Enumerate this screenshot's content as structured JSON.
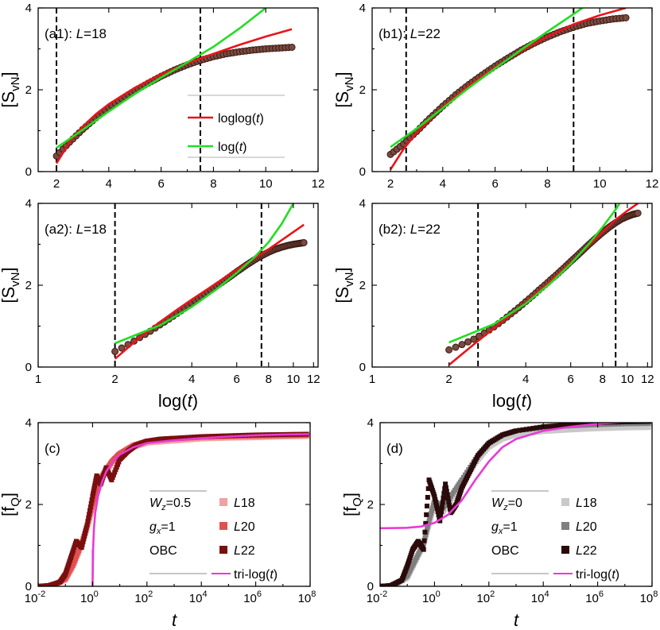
{
  "colors": {
    "red": "#e8141a",
    "green": "#22dd22",
    "magenta": "#e83ad6",
    "data_dark": "#3a1a12",
    "data_marker_fill": "#7a4a40",
    "l18_red": "#f2a0a0",
    "l20_red": "#e05050",
    "l22_red": "#7a0f0f",
    "l18_gray": "#c9c9c9",
    "l20_gray": "#7f7f7f",
    "l22_gray": "#2a0a0a"
  },
  "chart_data": [
    {
      "id": "a1",
      "type": "line",
      "panel_label": "(a1): ",
      "panel_L": "L",
      "panel_value": "=18",
      "xscale": "linear",
      "xlim": [
        1.3,
        12
      ],
      "ylim": [
        0,
        4
      ],
      "xticks": [
        2,
        4,
        6,
        8,
        10,
        12
      ],
      "xtick_labels": [
        "2",
        "4",
        "6",
        "8",
        "10",
        "12"
      ],
      "yticks": [
        0,
        2,
        4
      ],
      "ytick_labels": [
        "0",
        "2",
        "4"
      ],
      "ylabel": "[S",
      "ylabel_sub": "vN",
      "ylabel_close": "]",
      "vlines": [
        2.0,
        7.5
      ],
      "data": {
        "x": [
          2.0,
          2.5,
          3.0,
          3.5,
          4.0,
          4.5,
          5.0,
          5.5,
          6.0,
          6.5,
          7.0,
          7.5,
          8.0,
          8.5,
          9.0,
          9.5,
          10.0,
          10.5,
          11.0
        ],
        "y": [
          0.38,
          0.72,
          1.03,
          1.31,
          1.56,
          1.78,
          1.98,
          2.16,
          2.33,
          2.48,
          2.61,
          2.72,
          2.81,
          2.88,
          2.93,
          2.97,
          3.0,
          3.02,
          3.04
        ]
      },
      "fits": [
        {
          "name": "loglog(t)",
          "color_key": "red",
          "x": [
            2.0,
            2.5,
            3.0,
            3.5,
            4.0,
            5.0,
            6.0,
            7.0,
            8.0,
            9.0,
            10.0,
            11.0
          ],
          "y": [
            0.2,
            0.72,
            1.1,
            1.4,
            1.65,
            2.05,
            2.38,
            2.65,
            2.88,
            3.1,
            3.3,
            3.48
          ]
        },
        {
          "name": "log(t)",
          "color_key": "green",
          "x": [
            2.0,
            3.0,
            4.0,
            5.0,
            6.0,
            7.0,
            8.0,
            9.0,
            10.0
          ],
          "y": [
            0.58,
            1.02,
            1.47,
            1.9,
            2.3,
            2.67,
            3.05,
            3.5,
            4.0
          ]
        }
      ],
      "legend": {
        "items": [
          {
            "text": "loglog(",
            "italic": "t",
            "close": ")",
            "color_key": "red"
          },
          {
            "text": "log(",
            "italic": "t",
            "close": ")",
            "color_key": "green"
          }
        ]
      }
    },
    {
      "id": "b1",
      "type": "line",
      "panel_label": "(b1): ",
      "panel_L": "L",
      "panel_value": "=22",
      "xscale": "linear",
      "xlim": [
        1.3,
        12
      ],
      "ylim": [
        0,
        4
      ],
      "xticks": [
        2,
        4,
        6,
        8,
        10,
        12
      ],
      "xtick_labels": [
        "2",
        "4",
        "6",
        "8",
        "10",
        "12"
      ],
      "yticks": [
        0,
        2,
        4
      ],
      "ytick_labels": [
        "0",
        "2",
        "4"
      ],
      "ylabel": "[S",
      "ylabel_sub": "vN",
      "ylabel_close": "]",
      "vlines": [
        2.6,
        9.0
      ],
      "data": {
        "x": [
          2.0,
          2.5,
          3.0,
          3.5,
          4.0,
          4.5,
          5.0,
          5.5,
          6.0,
          6.5,
          7.0,
          7.5,
          8.0,
          8.5,
          9.0,
          9.5,
          10.0,
          10.5,
          11.0
        ],
        "y": [
          0.42,
          0.68,
          0.98,
          1.3,
          1.6,
          1.88,
          2.13,
          2.36,
          2.58,
          2.78,
          2.97,
          3.14,
          3.29,
          3.42,
          3.53,
          3.62,
          3.68,
          3.73,
          3.76
        ]
      },
      "fits": [
        {
          "name": "loglog(t)",
          "color_key": "red",
          "x": [
            2.0,
            2.5,
            3.0,
            4.0,
            5.0,
            6.0,
            7.0,
            8.0,
            9.0,
            10.0,
            11.0
          ],
          "y": [
            0.05,
            0.55,
            0.95,
            1.58,
            2.1,
            2.55,
            2.95,
            3.3,
            3.6,
            3.82,
            4.0
          ]
        },
        {
          "name": "log(t)",
          "color_key": "green",
          "x": [
            2.0,
            3.0,
            4.0,
            5.0,
            6.0,
            7.0,
            8.0,
            9.0,
            10.0
          ],
          "y": [
            0.6,
            1.05,
            1.55,
            2.05,
            2.52,
            2.98,
            3.42,
            3.85,
            4.3
          ]
        }
      ]
    },
    {
      "id": "a2",
      "type": "line",
      "panel_label": "(a2): ",
      "panel_L": "L",
      "panel_value": "=18",
      "xscale": "log",
      "xlim": [
        1,
        12.5
      ],
      "ylim": [
        0,
        4
      ],
      "xticks": [
        1,
        2,
        4,
        6,
        8,
        10,
        12
      ],
      "xtick_labels": [
        "1",
        "2",
        "4",
        "6",
        "8",
        "10",
        "12"
      ],
      "yticks": [
        0,
        2,
        4
      ],
      "ytick_labels": [
        "0",
        "2",
        "4"
      ],
      "ylabel": "[S",
      "ylabel_sub": "vN",
      "ylabel_close": "]",
      "xlabel": "log(",
      "xlabel_italic": "t",
      "xlabel_close": ")",
      "vlines": [
        2.0,
        7.5
      ],
      "data": {
        "x": [
          2.0,
          2.5,
          3.0,
          3.5,
          4.0,
          4.5,
          5.0,
          5.5,
          6.0,
          6.5,
          7.0,
          7.5,
          8.0,
          8.5,
          9.0,
          9.5,
          10.0,
          10.5,
          11.0
        ],
        "y": [
          0.38,
          0.72,
          1.03,
          1.31,
          1.56,
          1.78,
          1.98,
          2.16,
          2.33,
          2.48,
          2.61,
          2.72,
          2.81,
          2.88,
          2.93,
          2.97,
          3.0,
          3.02,
          3.04
        ]
      },
      "fits": [
        {
          "name": "loglog(t)",
          "color_key": "red",
          "x": [
            2.0,
            2.5,
            3.0,
            3.5,
            4.0,
            5.0,
            6.0,
            7.0,
            8.0,
            9.0,
            10.0,
            11.0
          ],
          "y": [
            0.2,
            0.72,
            1.1,
            1.4,
            1.65,
            2.05,
            2.38,
            2.65,
            2.88,
            3.1,
            3.3,
            3.48
          ]
        },
        {
          "name": "log(t)",
          "color_key": "green",
          "x": [
            2.0,
            3.0,
            4.0,
            5.0,
            6.0,
            7.0,
            8.0,
            9.0,
            10.0
          ],
          "y": [
            0.58,
            1.02,
            1.47,
            1.9,
            2.3,
            2.67,
            3.05,
            3.5,
            4.0
          ]
        }
      ]
    },
    {
      "id": "b2",
      "type": "line",
      "panel_label": "(b2): ",
      "panel_L": "L",
      "panel_value": "=22",
      "xscale": "log",
      "xlim": [
        1,
        12.5
      ],
      "ylim": [
        0,
        4
      ],
      "xticks": [
        1,
        2,
        4,
        6,
        8,
        10,
        12
      ],
      "xtick_labels": [
        "1",
        "2",
        "4",
        "6",
        "8",
        "10",
        "12"
      ],
      "yticks": [
        0,
        2,
        4
      ],
      "ytick_labels": [
        "0",
        "2",
        "4"
      ],
      "ylabel": "[S",
      "ylabel_sub": "vN",
      "ylabel_close": "]",
      "xlabel": "log(",
      "xlabel_italic": "t",
      "xlabel_close": ")",
      "vlines": [
        2.6,
        9.0
      ],
      "data": {
        "x": [
          2.0,
          2.5,
          3.0,
          3.5,
          4.0,
          4.5,
          5.0,
          5.5,
          6.0,
          6.5,
          7.0,
          7.5,
          8.0,
          8.5,
          9.0,
          9.5,
          10.0,
          10.5,
          11.0
        ],
        "y": [
          0.42,
          0.68,
          0.98,
          1.3,
          1.6,
          1.88,
          2.13,
          2.36,
          2.58,
          2.78,
          2.97,
          3.14,
          3.29,
          3.42,
          3.53,
          3.62,
          3.68,
          3.73,
          3.76
        ]
      },
      "fits": [
        {
          "name": "loglog(t)",
          "color_key": "red",
          "x": [
            2.0,
            2.5,
            3.0,
            4.0,
            5.0,
            6.0,
            7.0,
            8.0,
            9.0,
            10.0,
            11.0
          ],
          "y": [
            0.05,
            0.55,
            0.95,
            1.58,
            2.1,
            2.55,
            2.95,
            3.3,
            3.6,
            3.82,
            4.0
          ]
        },
        {
          "name": "log(t)",
          "color_key": "green",
          "x": [
            2.0,
            3.0,
            4.0,
            5.0,
            6.0,
            7.0,
            8.0,
            9.0,
            10.0
          ],
          "y": [
            0.6,
            1.05,
            1.55,
            2.05,
            2.52,
            2.98,
            3.42,
            3.85,
            4.3
          ]
        }
      ]
    },
    {
      "id": "c",
      "type": "scatter",
      "panel_label": "(c)",
      "xscale": "log10",
      "xlim": [
        -2,
        8
      ],
      "ylim": [
        0,
        4
      ],
      "xticks": [
        -2,
        0,
        2,
        4,
        6,
        8
      ],
      "xtick_labels": [
        "10",
        "10",
        "10",
        "10",
        "10",
        "10"
      ],
      "xtick_exps": [
        "-2",
        "0",
        "2",
        "4",
        "6",
        "8"
      ],
      "yticks": [
        0,
        2,
        4
      ],
      "ytick_labels": [
        "0",
        "2",
        "4"
      ],
      "ylabel": "[f",
      "ylabel_sub": "Q",
      "ylabel_close": "]",
      "xlabel": "t",
      "params": [
        "W",
        "z",
        "=0.5",
        "g",
        "x",
        "=1",
        "OBC"
      ],
      "series": [
        {
          "name": "L",
          "name_suffix": "18",
          "color_key": "l18_red",
          "log_t": [
            -2.0,
            -1.5,
            -1.0,
            -0.7,
            -0.4,
            -0.2,
            0.0,
            0.2,
            0.4,
            0.7,
            1.0,
            1.5,
            2.0,
            3.0,
            4.0,
            5.0,
            6.0,
            7.0,
            8.0
          ],
          "y": [
            0.0,
            0.02,
            0.15,
            0.5,
            1.0,
            1.4,
            1.9,
            2.4,
            2.7,
            3.0,
            3.2,
            3.4,
            3.5,
            3.55,
            3.6,
            3.62,
            3.63,
            3.65,
            3.66
          ]
        },
        {
          "name": "L",
          "name_suffix": "20",
          "color_key": "l20_red",
          "log_t": [
            -2.0,
            -1.5,
            -1.0,
            -0.7,
            -0.4,
            -0.2,
            0.0,
            0.2,
            0.4,
            0.7,
            1.0,
            1.5,
            2.0,
            3.0,
            4.0,
            5.0,
            6.0,
            7.0,
            8.0
          ],
          "y": [
            0.0,
            0.02,
            0.18,
            0.55,
            1.05,
            1.5,
            2.0,
            2.5,
            2.75,
            3.05,
            3.25,
            3.45,
            3.55,
            3.6,
            3.64,
            3.66,
            3.67,
            3.68,
            3.69
          ]
        },
        {
          "name": "L",
          "name_suffix": "22",
          "color_key": "l22_red",
          "log_t": [
            -2.0,
            -1.6,
            -1.2,
            -1.0,
            -0.8,
            -0.6,
            -0.4,
            -0.2,
            0.0,
            0.15,
            0.3,
            0.5,
            0.7,
            1.0,
            1.3,
            1.6,
            2.0,
            2.5,
            3.0,
            4.0,
            5.0,
            6.0,
            7.0,
            8.0
          ],
          "y": [
            0.0,
            0.02,
            0.1,
            0.3,
            0.7,
            1.1,
            0.95,
            1.5,
            2.2,
            2.7,
            2.5,
            2.9,
            2.6,
            3.1,
            3.3,
            3.45,
            3.55,
            3.6,
            3.62,
            3.66,
            3.68,
            3.7,
            3.71,
            3.72
          ]
        }
      ],
      "fit": {
        "name": "tri-log(",
        "italic": "t",
        "close": ")",
        "color_key": "magenta",
        "log_t": [
          0.0,
          0.02,
          0.05,
          0.1,
          0.2,
          0.35,
          0.5,
          0.75,
          1.0,
          1.5,
          2.0,
          3.0,
          4.0,
          5.0,
          6.0,
          7.0,
          8.0
        ],
        "y": [
          0.0,
          0.9,
          1.4,
          1.8,
          2.2,
          2.55,
          2.8,
          3.05,
          3.22,
          3.4,
          3.5,
          3.57,
          3.62,
          3.66,
          3.69,
          3.71,
          3.72
        ]
      }
    },
    {
      "id": "d",
      "type": "scatter",
      "panel_label": "(d)",
      "xscale": "log10",
      "xlim": [
        -2,
        8
      ],
      "ylim": [
        0,
        4
      ],
      "xticks": [
        -2,
        0,
        2,
        4,
        6,
        8
      ],
      "xtick_labels": [
        "10",
        "10",
        "10",
        "10",
        "10",
        "10"
      ],
      "xtick_exps": [
        "-2",
        "0",
        "2",
        "4",
        "6",
        "8"
      ],
      "yticks": [
        0,
        2,
        4
      ],
      "ytick_labels": [
        "0",
        "2",
        "4"
      ],
      "ylabel": "[f",
      "ylabel_sub": "Q",
      "ylabel_close": "]",
      "xlabel": "t",
      "params": [
        "W",
        "z",
        "=0",
        "g",
        "x",
        "=1",
        "OBC"
      ],
      "series": [
        {
          "name": "L",
          "name_suffix": "18",
          "color_key": "l18_gray",
          "log_t": [
            -2.0,
            -1.5,
            -1.0,
            -0.7,
            -0.4,
            -0.2,
            0.0,
            0.3,
            0.6,
            1.0,
            1.5,
            2.0,
            2.5,
            3.0,
            4.0,
            5.0,
            6.0,
            7.0,
            8.0
          ],
          "y": [
            0.0,
            0.02,
            0.2,
            0.6,
            1.0,
            1.5,
            2.0,
            1.8,
            2.1,
            2.5,
            3.0,
            3.4,
            3.6,
            3.7,
            3.78,
            3.82,
            3.85,
            3.87,
            3.88
          ]
        },
        {
          "name": "L",
          "name_suffix": "20",
          "color_key": "l20_gray",
          "log_t": [
            -2.0,
            -1.5,
            -1.0,
            -0.7,
            -0.4,
            -0.2,
            0.0,
            0.3,
            0.6,
            1.0,
            1.5,
            2.0,
            2.5,
            3.0,
            4.0,
            5.0,
            6.0,
            7.0,
            8.0
          ],
          "y": [
            0.0,
            0.02,
            0.25,
            0.65,
            1.05,
            1.6,
            2.1,
            1.9,
            2.2,
            2.6,
            3.1,
            3.5,
            3.7,
            3.8,
            3.88,
            3.92,
            3.95,
            3.97,
            3.98
          ]
        },
        {
          "name": "L",
          "name_suffix": "22",
          "color_key": "l22_gray",
          "log_t": [
            -2.0,
            -1.6,
            -1.2,
            -1.0,
            -0.8,
            -0.6,
            -0.4,
            -0.2,
            0.0,
            0.2,
            0.4,
            0.6,
            0.8,
            1.0,
            1.3,
            1.6,
            2.0,
            2.5,
            3.0,
            4.0,
            5.0,
            6.0,
            7.0,
            8.0
          ],
          "y": [
            0.0,
            0.02,
            0.15,
            0.5,
            0.9,
            1.1,
            0.9,
            2.6,
            2.2,
            1.6,
            2.5,
            1.8,
            2.0,
            2.4,
            2.8,
            3.2,
            3.5,
            3.7,
            3.8,
            3.9,
            3.95,
            4.0,
            4.02,
            4.03
          ]
        }
      ],
      "fit": {
        "name": "tri-log(",
        "italic": "t",
        "close": ")",
        "color_key": "magenta",
        "log_t": [
          -2.0,
          -1.0,
          -0.5,
          0.0,
          0.5,
          1.0,
          1.5,
          2.0,
          2.5,
          3.0,
          4.0,
          5.0,
          6.0,
          7.0,
          8.0
        ],
        "y": [
          1.42,
          1.43,
          1.46,
          1.55,
          1.75,
          2.1,
          2.6,
          3.05,
          3.4,
          3.6,
          3.8,
          3.9,
          3.97,
          4.02,
          4.06
        ]
      }
    }
  ]
}
